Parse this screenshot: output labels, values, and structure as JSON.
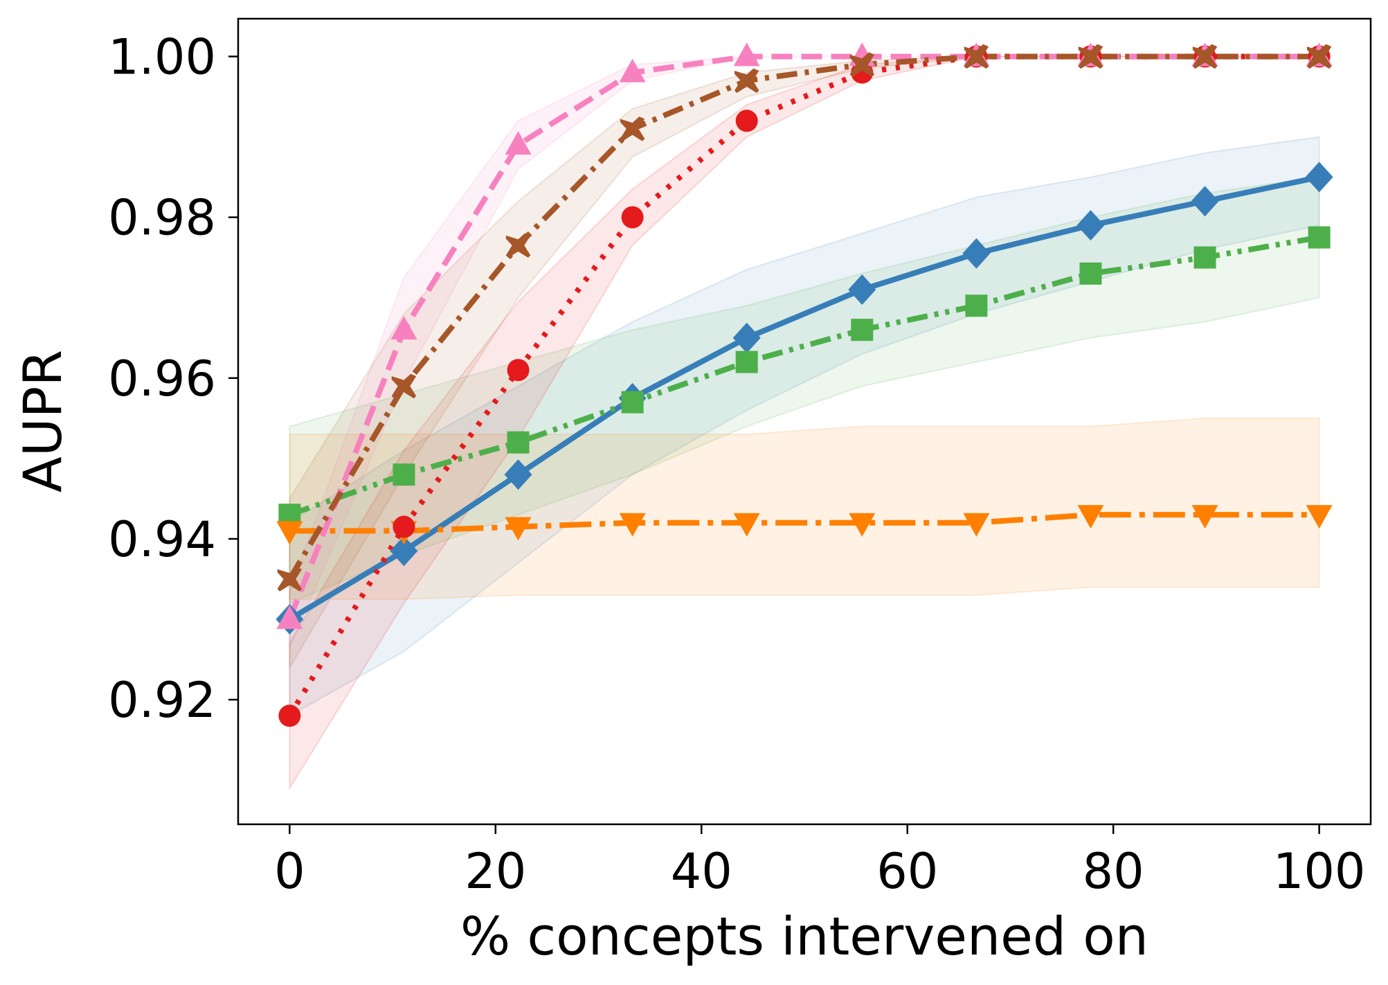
{
  "chart_data": {
    "type": "line",
    "title": "",
    "xlabel": "% concepts intervened on",
    "ylabel": "AUPR",
    "xlim": [
      -5,
      105
    ],
    "ylim": [
      0.9045,
      1.0047
    ],
    "x_ticks": [
      0,
      20,
      40,
      60,
      80,
      100
    ],
    "y_ticks": [
      0.92,
      0.94,
      0.96,
      0.98,
      1.0
    ],
    "x_tick_labels": [
      "0",
      "20",
      "40",
      "60",
      "80",
      "100"
    ],
    "y_tick_labels": [
      "0.92",
      "0.94",
      "0.96",
      "0.98",
      "1.00"
    ],
    "grid": false,
    "x": [
      0,
      11.1,
      22.2,
      33.3,
      44.4,
      55.6,
      66.7,
      77.8,
      88.9,
      100
    ],
    "series": [
      {
        "name": "blue-diamond-solid",
        "color": "#377eb8",
        "marker": "diamond",
        "dash": "solid",
        "values": [
          0.93,
          0.9385,
          0.948,
          0.9575,
          0.965,
          0.971,
          0.9755,
          0.979,
          0.982,
          0.985
        ],
        "lower": [
          0.918,
          0.926,
          0.937,
          0.948,
          0.956,
          0.963,
          0.968,
          0.972,
          0.976,
          0.979
        ],
        "upper": [
          0.942,
          0.951,
          0.959,
          0.967,
          0.9735,
          0.978,
          0.9825,
          0.985,
          0.988,
          0.99
        ]
      },
      {
        "name": "green-square-dashdotdot",
        "color": "#4daf4a",
        "marker": "square",
        "dash": "dashdotdot",
        "values": [
          0.943,
          0.948,
          0.952,
          0.957,
          0.962,
          0.966,
          0.969,
          0.973,
          0.975,
          0.9775
        ],
        "lower": [
          0.932,
          0.938,
          0.943,
          0.948,
          0.954,
          0.959,
          0.962,
          0.965,
          0.967,
          0.97
        ],
        "upper": [
          0.954,
          0.958,
          0.962,
          0.966,
          0.969,
          0.973,
          0.9765,
          0.98,
          0.983,
          0.985
        ]
      },
      {
        "name": "orange-triangle-down-dashdot",
        "color": "#ff7f00",
        "marker": "triangle-down",
        "dash": "longdashdot",
        "values": [
          0.941,
          0.941,
          0.9415,
          0.942,
          0.942,
          0.942,
          0.942,
          0.943,
          0.943,
          0.943
        ],
        "lower": [
          0.9325,
          0.9325,
          0.933,
          0.933,
          0.933,
          0.933,
          0.933,
          0.934,
          0.934,
          0.934
        ],
        "upper": [
          0.953,
          0.953,
          0.953,
          0.953,
          0.953,
          0.954,
          0.954,
          0.954,
          0.955,
          0.955
        ]
      },
      {
        "name": "red-circle-dotted",
        "color": "#e41a1c",
        "marker": "circle",
        "dash": "dotted",
        "values": [
          0.918,
          0.9415,
          0.961,
          0.98,
          0.992,
          0.998,
          1.0,
          1.0,
          1.0,
          1.0
        ],
        "lower": [
          0.909,
          0.932,
          0.9525,
          0.9765,
          0.99,
          0.997,
          1.0,
          1.0,
          1.0,
          1.0
        ],
        "upper": [
          0.927,
          0.951,
          0.9695,
          0.9835,
          0.994,
          0.999,
          1.0,
          1.0,
          1.0,
          1.0
        ]
      },
      {
        "name": "pink-triangle-up-dashed",
        "color": "#f781bf",
        "marker": "triangle-up",
        "dash": "dashed",
        "values": [
          0.93,
          0.966,
          0.989,
          0.998,
          1.0,
          1.0,
          1.0,
          1.0,
          1.0,
          1.0
        ],
        "lower": [
          0.9265,
          0.9595,
          0.986,
          0.997,
          1.0,
          1.0,
          1.0,
          1.0,
          1.0,
          1.0
        ],
        "upper": [
          0.9335,
          0.9725,
          0.992,
          0.999,
          1.0,
          1.0,
          1.0,
          1.0,
          1.0,
          1.0
        ]
      },
      {
        "name": "brown-x-dashdot",
        "color": "#a65628",
        "marker": "x",
        "dash": "dashdot",
        "values": [
          0.935,
          0.959,
          0.9765,
          0.991,
          0.997,
          0.999,
          1.0,
          1.0,
          1.0,
          1.0
        ],
        "lower": [
          0.924,
          0.948,
          0.97,
          0.9875,
          0.995,
          0.9985,
          1.0,
          1.0,
          1.0,
          1.0
        ],
        "upper": [
          0.945,
          0.968,
          0.982,
          0.9935,
          0.998,
          0.9995,
          1.0,
          1.0,
          1.0,
          1.0
        ]
      }
    ]
  }
}
